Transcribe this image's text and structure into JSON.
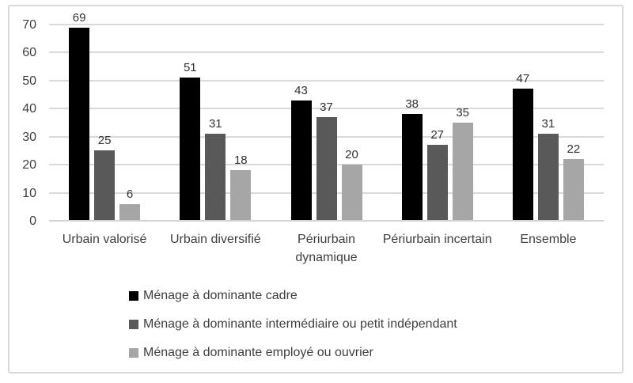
{
  "chart_data": {
    "type": "bar",
    "title": "",
    "xlabel": "",
    "ylabel": "",
    "categories": [
      "Urbain valorisé",
      "Urbain diversifié",
      "Périurbain dynamique",
      "Périurbain incertain",
      "Ensemble"
    ],
    "series": [
      {
        "name": "Ménage à dominante cadre",
        "color": "#000000",
        "values": [
          69,
          51,
          43,
          38,
          47
        ]
      },
      {
        "name": "Ménage à dominante intermédiaire ou petit indépendant",
        "color": "#595959",
        "values": [
          25,
          31,
          37,
          27,
          31
        ]
      },
      {
        "name": "Ménage à dominante employé ou ouvrier",
        "color": "#a6a6a6",
        "values": [
          6,
          18,
          20,
          35,
          22
        ]
      }
    ],
    "ylim": [
      0,
      70
    ],
    "yticks": [
      0,
      10,
      20,
      30,
      40,
      50,
      60,
      70
    ],
    "grid": true,
    "legend_position": "bottom",
    "data_labels": true
  },
  "colors": {
    "gridline": "#d9d9d9",
    "axis_line": "#d3d3d3",
    "text": "#3f3f3f",
    "frame_border": "#d9d9d9",
    "background": "#ffffff"
  }
}
